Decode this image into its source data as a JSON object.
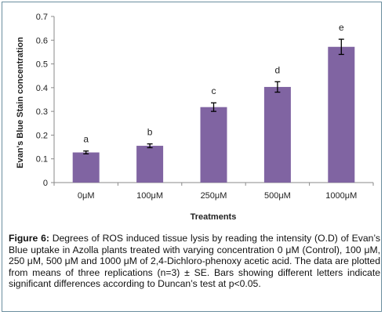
{
  "chart_data": {
    "type": "bar",
    "categories": [
      "0μM",
      "100μM",
      "250μM",
      "500μM",
      "1000μM"
    ],
    "values": [
      0.127,
      0.155,
      0.318,
      0.403,
      0.572
    ],
    "errors": [
      0.006,
      0.008,
      0.018,
      0.022,
      0.032
    ],
    "significance_labels": [
      "a",
      "b",
      "c",
      "d",
      "e"
    ],
    "xlabel": "Treatments",
    "ylabel": "Evan's Blue Stain concentration",
    "ylim": [
      0,
      0.7
    ],
    "yticks": [
      "0",
      "0.1",
      "0.2",
      "0.3",
      "0.4",
      "0.5",
      "0.6",
      "0.7"
    ],
    "bar_color": "#8064a2",
    "grid": false,
    "legend": "none"
  },
  "caption": {
    "label": "Figure 6:",
    "text": " Degrees of ROS induced tissue lysis by reading the intensity (O.D) of Evan’s Blue uptake in Azolla plants treated with varying concentration 0 μM (Control), 100 μM, 250 μM, 500 μM and 1000 μM of 2,4-Dichloro-phenoxy acetic acid. The data are plotted from means of three replications (n=3) ± SE. Bars showing different letters indicate significant differences according to Duncan’s test at p<0.05."
  }
}
